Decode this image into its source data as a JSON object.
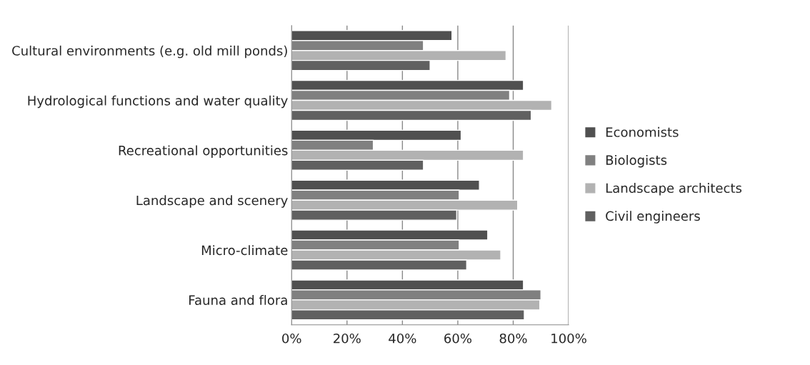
{
  "chart_data": {
    "type": "bar",
    "orientation": "horizontal",
    "categories": [
      "Cultural environments (e.g. old mill ponds)",
      "Hydrological functions and water quality",
      "Recreational opportunities",
      "Landscape and scenery",
      "Micro-climate",
      "Fauna and flora"
    ],
    "series": [
      {
        "name": "Economists",
        "color": "#505050",
        "values": [
          57.9,
          83.7,
          61.2,
          67.8,
          70.8,
          83.7
        ]
      },
      {
        "name": "Biologists",
        "color": "#808080",
        "values": [
          47.6,
          78.7,
          29.5,
          60.5,
          60.5,
          90.0
        ]
      },
      {
        "name": "Landscape architects",
        "color": "#b2b2b2",
        "values": [
          77.4,
          93.9,
          83.7,
          81.6,
          75.5,
          89.6
        ]
      },
      {
        "name": "Civil engineers",
        "color": "#606060",
        "values": [
          50.0,
          86.5,
          47.6,
          59.6,
          63.2,
          84.0
        ]
      }
    ],
    "xlim": [
      0,
      100
    ],
    "xticks": [
      {
        "value": 0,
        "label": "0%"
      },
      {
        "value": 20,
        "label": "20%"
      },
      {
        "value": 40,
        "label": "40%"
      },
      {
        "value": 60,
        "label": "60%"
      },
      {
        "value": 80,
        "label": "80%"
      },
      {
        "value": 100,
        "label": "100%"
      }
    ],
    "grid": "x",
    "legend": "right"
  }
}
